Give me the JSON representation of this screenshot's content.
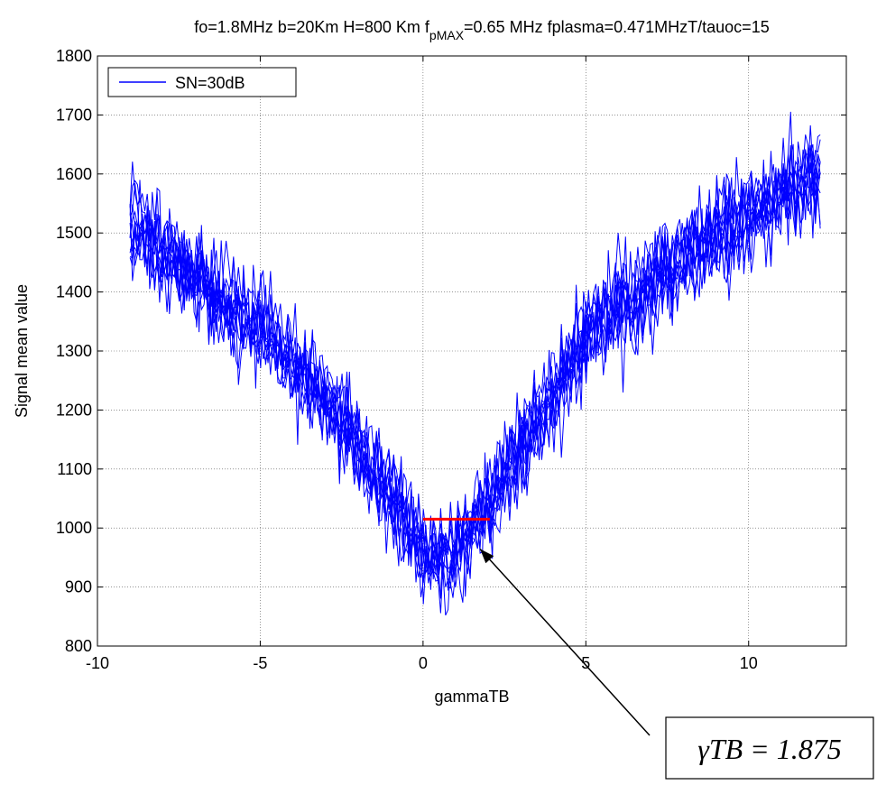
{
  "chart_data": {
    "type": "line",
    "title_main": "fo=1.8MHz b=20Km H=800 Km f",
    "title_sub": "pMAX",
    "title_tail": "=0.65 MHz  fplasma=0.471MHzT/tauoc=15",
    "xlabel": "gammaTB",
    "ylabel": "Signal mean value",
    "xlim": [
      -10,
      13
    ],
    "ylim": [
      800,
      1800
    ],
    "xticks": [
      -10,
      -5,
      0,
      5,
      10
    ],
    "yticks": [
      800,
      900,
      1000,
      1100,
      1200,
      1300,
      1400,
      1500,
      1600,
      1700,
      1800
    ],
    "grid": true,
    "legend_position": "top-left",
    "series": [
      {
        "name": "SN=30dB",
        "color": "#0000FF",
        "trend_x": [
          -9,
          -7,
          -5,
          -3,
          -1,
          0,
          0.5,
          1,
          2,
          3,
          4,
          5,
          7,
          9,
          10,
          12.2
        ],
        "trend_y": [
          1520,
          1430,
          1340,
          1220,
          1060,
          960,
          950,
          960,
          1040,
          1140,
          1230,
          1330,
          1420,
          1500,
          1530,
          1610
        ],
        "spread": 110,
        "num_realizations": 12,
        "x_range": [
          -9,
          12.2
        ]
      }
    ],
    "threshold_line": {
      "x": [
        0,
        2.05
      ],
      "y": 1015,
      "color": "#FF0000"
    },
    "annotation": {
      "text": "γTB = 1.875",
      "points_to": [
        1.75,
        983
      ]
    }
  }
}
